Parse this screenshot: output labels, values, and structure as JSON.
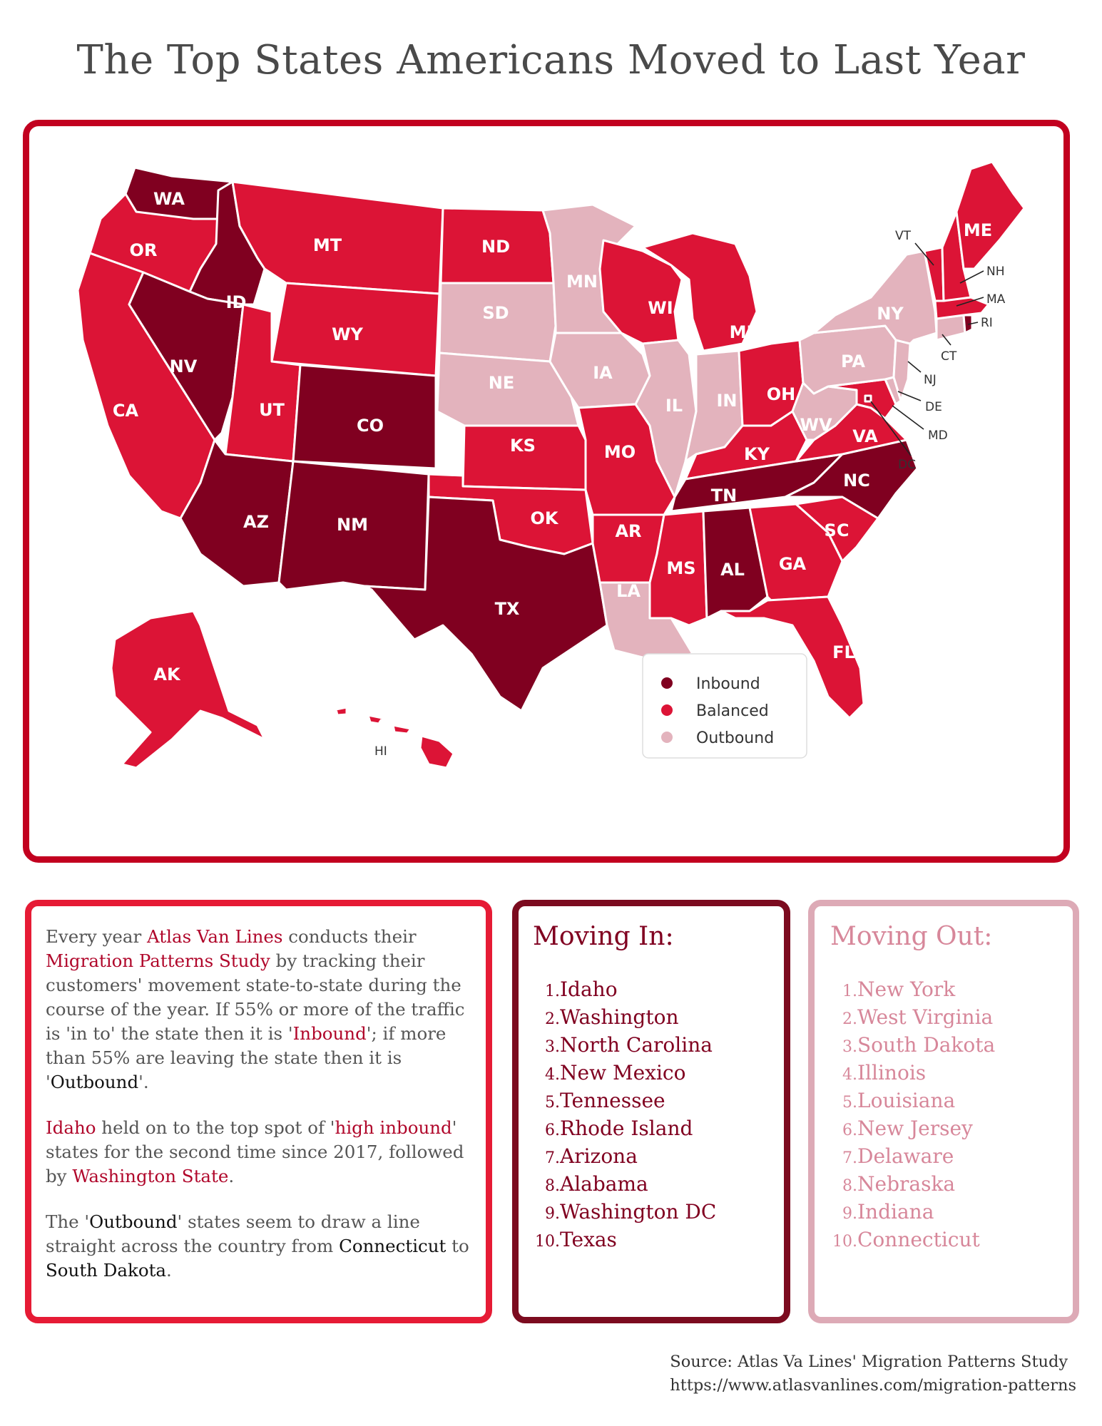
{
  "title": "The Top States Americans Moved to Last Year",
  "colors": {
    "inbound": "#800020",
    "balanced": "#dc1436",
    "outbound": "#e3b3bd",
    "frame": "#c2001f"
  },
  "map": {
    "states": {
      "WA": "Inbound",
      "ID": "Inbound",
      "NV": "Inbound",
      "CO": "Inbound",
      "AZ": "Inbound",
      "NM": "Inbound",
      "TX": "Inbound",
      "TN": "Inbound",
      "AL": "Inbound",
      "NC": "Inbound",
      "RI": "Inbound",
      "DC": "Inbound",
      "OR": "Balanced",
      "CA": "Balanced",
      "MT": "Balanced",
      "WY": "Balanced",
      "UT": "Balanced",
      "ND": "Balanced",
      "KS": "Balanced",
      "OK": "Balanced",
      "MO": "Balanced",
      "AR": "Balanced",
      "WI": "Balanced",
      "MI": "Balanced",
      "OH": "Balanced",
      "KY": "Balanced",
      "MS": "Balanced",
      "GA": "Balanced",
      "SC": "Balanced",
      "FL": "Balanced",
      "VA": "Balanced",
      "MD": "Balanced",
      "ME": "Balanced",
      "VT": "Balanced",
      "NH": "Balanced",
      "MA": "Balanced",
      "AK": "Balanced",
      "HI": "Balanced",
      "MN": "Outbound",
      "SD": "Outbound",
      "NE": "Outbound",
      "IA": "Outbound",
      "IL": "Outbound",
      "IN": "Outbound",
      "LA": "Outbound",
      "WV": "Outbound",
      "NY": "Outbound",
      "PA": "Outbound",
      "NJ": "Outbound",
      "DE": "Outbound",
      "CT": "Outbound"
    },
    "labels": {
      "WA": "WA",
      "OR": "OR",
      "CA": "CA",
      "ID": "ID",
      "NV": "NV",
      "MT": "MT",
      "WY": "WY",
      "UT": "UT",
      "CO": "CO",
      "AZ": "AZ",
      "NM": "NM",
      "ND": "ND",
      "SD": "SD",
      "NE": "NE",
      "KS": "KS",
      "OK": "OK",
      "TX": "TX",
      "MN": "MN",
      "IA": "IA",
      "MO": "MO",
      "AR": "AR",
      "LA": "LA",
      "WI": "WI",
      "IL": "IL",
      "MI": "MI",
      "IN": "IN",
      "OH": "OH",
      "KY": "KY",
      "TN": "TN",
      "MS": "MS",
      "AL": "AL",
      "GA": "GA",
      "FL": "FL",
      "SC": "SC",
      "NC": "NC",
      "VA": "VA",
      "WV": "WV",
      "PA": "PA",
      "NY": "NY",
      "ME": "ME",
      "AK": "AK",
      "VT": "VT",
      "NH": "NH",
      "MA": "MA",
      "RI": "RI",
      "CT": "CT",
      "NJ": "NJ",
      "DE": "DE",
      "MD": "MD",
      "DC": "DC",
      "HI": "HI"
    }
  },
  "legend": {
    "inbound": "Inbound",
    "balanced": "Balanced",
    "outbound": "Outbound"
  },
  "description": {
    "p1_a": "Every year ",
    "p1_atlas": "Atlas Van Lines",
    "p1_b": " conducts their ",
    "p1_study": "Migration Patterns Study",
    "p1_c": " by tracking their customers' movement state-to-state during the course of the year. If 55% or more of the traffic is 'in to' the state then it is '",
    "p1_inbound": "Inbound",
    "p1_d": "'; if more than 55% are leaving the state then it is '",
    "p1_outbound": "Outbound",
    "p1_e": "'.",
    "p2_idaho": "Idaho",
    "p2_a": " held on to the top spot of '",
    "p2_high": "high inbound",
    "p2_b": "' states for the second time since 2017, followed by ",
    "p2_wa": "Washington State",
    "p2_c": ".",
    "p3_a": "The '",
    "p3_outbound": "Outbound",
    "p3_b": "' states seem to draw a line straight across the country from ",
    "p3_ct": "Connecticut",
    "p3_c": " to ",
    "p3_sd": "South Dakota",
    "p3_d": "."
  },
  "moving_in": {
    "heading": "Moving In:",
    "items": [
      "Idaho",
      "Washington",
      "North Carolina",
      "New Mexico",
      "Tennessee",
      "Rhode Island",
      "Arizona",
      "Alabama",
      "Washington DC",
      "Texas"
    ]
  },
  "moving_out": {
    "heading": "Moving Out:",
    "items": [
      "New York",
      "West Virginia",
      "South Dakota",
      "Illinois",
      "Louisiana",
      "New Jersey",
      "Delaware",
      "Nebraska",
      "Indiana",
      "Connecticut"
    ]
  },
  "source": {
    "line1": "Source: Atlas Va Lines' Migration Patterns Study",
    "line2": "https://www.atlasvanlines.com/migration-patterns"
  }
}
